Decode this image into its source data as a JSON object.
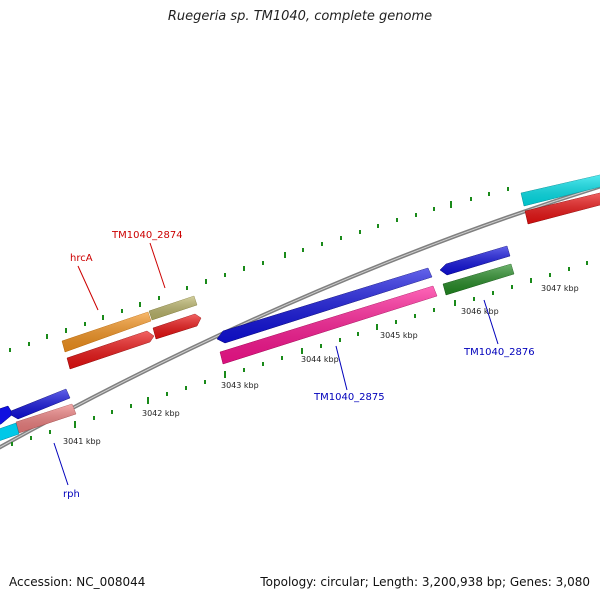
{
  "title": "Ruegeria sp. TM1040, complete genome",
  "footer": {
    "accession": "Accession: NC_008044",
    "topology": "Topology: circular; Length: 3,200,938 bp; Genes: 3,080"
  },
  "colors": {
    "backbone": "#808080",
    "tick": "#1a8a1a",
    "label_red": "#cc0000",
    "label_blue": "#0000bb"
  },
  "ruler": {
    "kbp_labels": [
      "3041 kbp",
      "3042 kbp",
      "3043 kbp",
      "3044 kbp",
      "3045 kbp",
      "3046 kbp",
      "3047 kbp"
    ]
  },
  "genes": [
    {
      "name": "hrcA",
      "color": "#cc0000"
    },
    {
      "name": "TM1040_2874",
      "color": "#cc0000"
    },
    {
      "name": "TM1040_2875",
      "color": "#0000bb"
    },
    {
      "name": "TM1040_2876",
      "color": "#0000bb"
    },
    {
      "name": "rph",
      "color": "#0000bb"
    }
  ]
}
